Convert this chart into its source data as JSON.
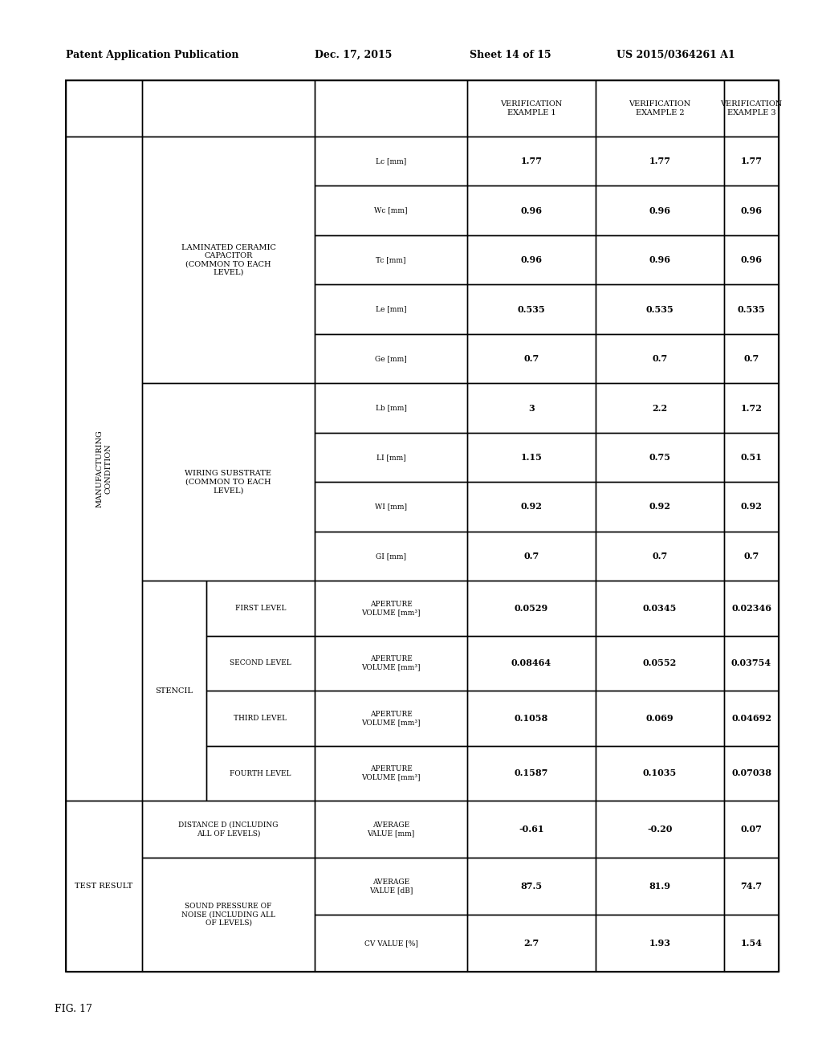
{
  "header_line1": "Patent Application Publication",
  "header_date": "Dec. 17, 2015",
  "header_sheet": "Sheet 14 of 15",
  "header_patent": "US 2015/0364261 A1",
  "fig_label": "FIG. 17",
  "rows": [
    {
      "param_label": "Lc [mm]",
      "v1": "1.77",
      "v2": "1.77",
      "v3": "1.77"
    },
    {
      "param_label": "Wc [mm]",
      "v1": "0.96",
      "v2": "0.96",
      "v3": "0.96"
    },
    {
      "param_label": "Tc [mm]",
      "v1": "0.96",
      "v2": "0.96",
      "v3": "0.96"
    },
    {
      "param_label": "Le [mm]",
      "v1": "0.535",
      "v2": "0.535",
      "v3": "0.535"
    },
    {
      "param_label": "Ge [mm]",
      "v1": "0.7",
      "v2": "0.7",
      "v3": "0.7"
    },
    {
      "param_label": "Lb [mm]",
      "v1": "3",
      "v2": "2.2",
      "v3": "1.72"
    },
    {
      "param_label": "LI [mm]",
      "v1": "1.15",
      "v2": "0.75",
      "v3": "0.51"
    },
    {
      "param_label": "WI [mm]",
      "v1": "0.92",
      "v2": "0.92",
      "v3": "0.92"
    },
    {
      "param_label": "GI [mm]",
      "v1": "0.7",
      "v2": "0.7",
      "v3": "0.7"
    },
    {
      "param_label": "APERTURE\nVOLUME [mm³]",
      "v1": "0.0529",
      "v2": "0.0345",
      "v3": "0.02346"
    },
    {
      "param_label": "APERTURE\nVOLUME [mm³]",
      "v1": "0.08464",
      "v2": "0.0552",
      "v3": "0.03754"
    },
    {
      "param_label": "APERTURE\nVOLUME [mm³]",
      "v1": "0.1058",
      "v2": "0.069",
      "v3": "0.04692"
    },
    {
      "param_label": "APERTURE\nVOLUME [mm³]",
      "v1": "0.1587",
      "v2": "0.1035",
      "v3": "0.07038"
    },
    {
      "param_label": "AVERAGE\nVALUE [mm]",
      "v1": "-0.61",
      "v2": "-0.20",
      "v3": "0.07"
    },
    {
      "param_label": "AVERAGE\nVALUE [dB]",
      "v1": "87.5",
      "v2": "81.9",
      "v3": "74.7"
    },
    {
      "param_label": "CV VALUE [%]",
      "v1": "2.7",
      "v2": "1.93",
      "v3": "1.54"
    }
  ]
}
